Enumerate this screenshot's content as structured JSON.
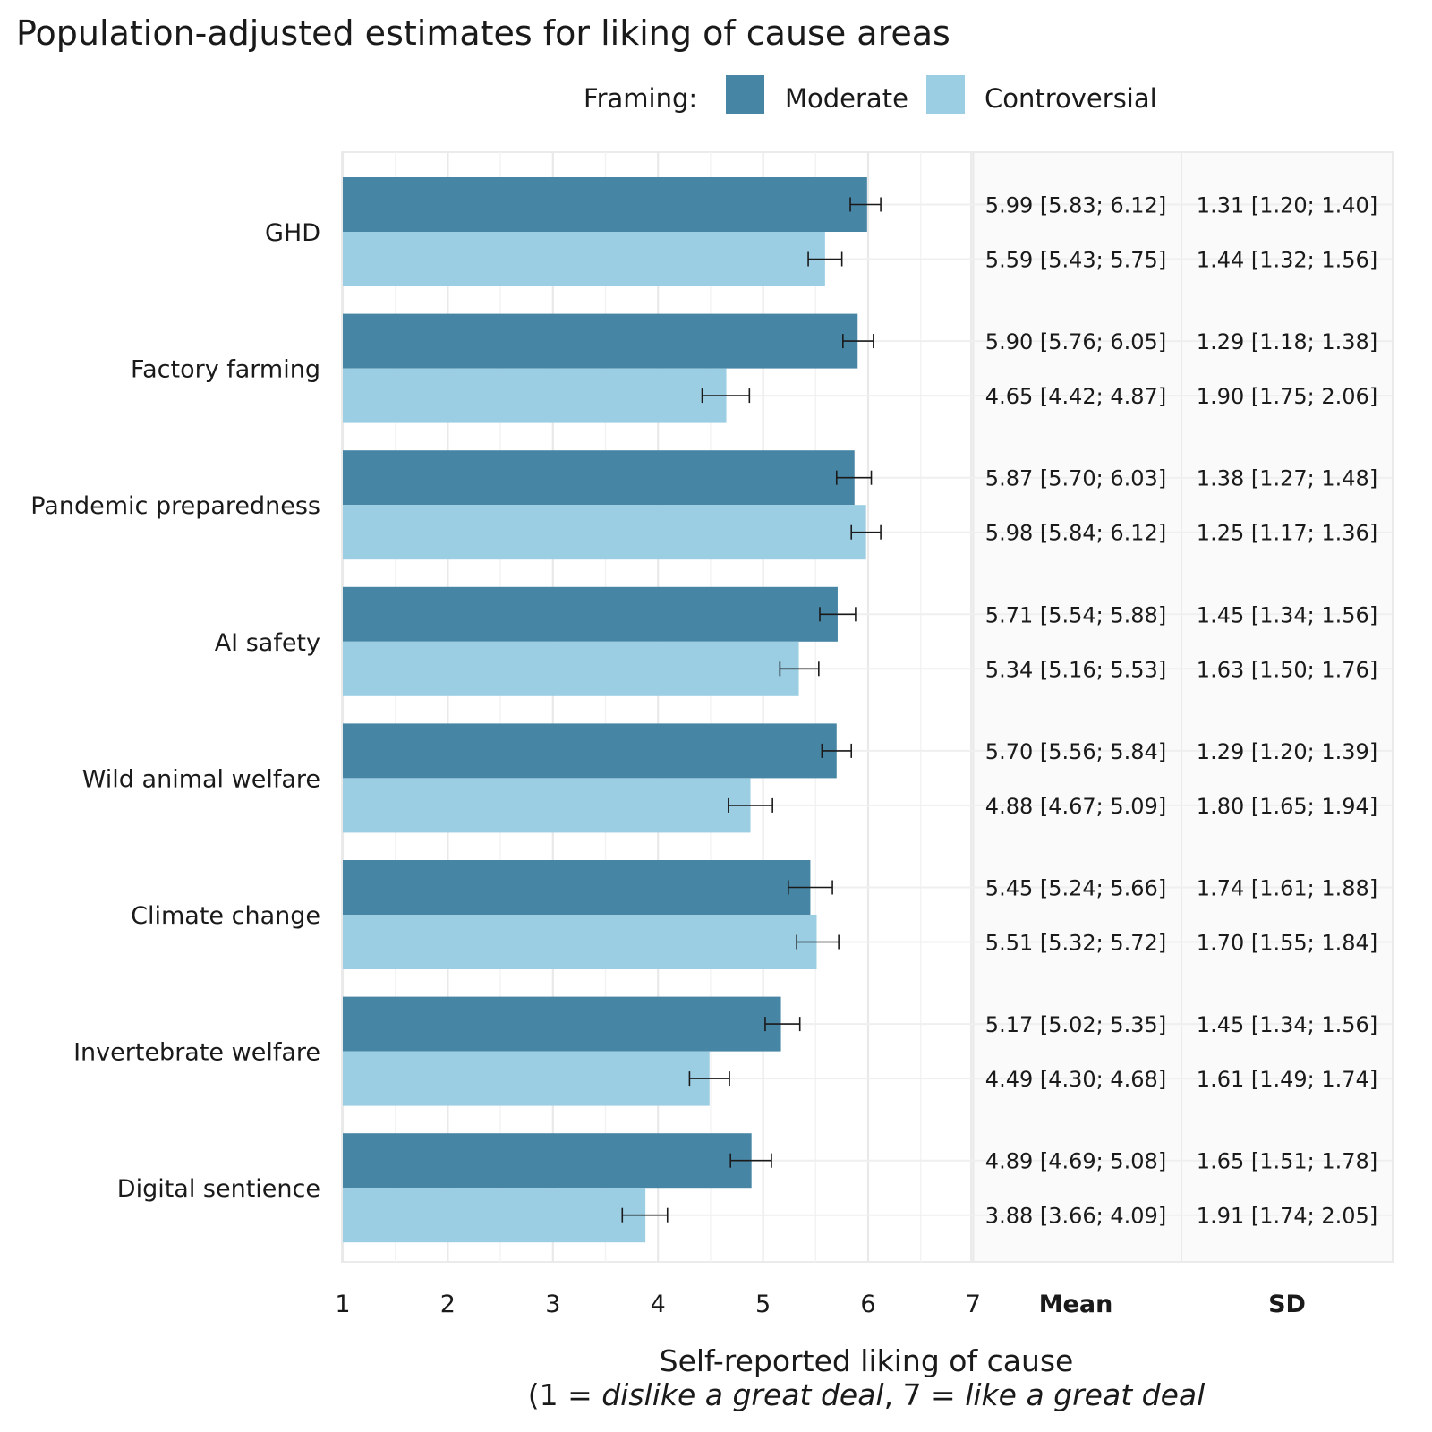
{
  "chart_data": {
    "type": "bar",
    "orientation": "horizontal",
    "title": "Population-adjusted estimates for liking of cause areas",
    "legend": {
      "title": "Framing:",
      "entries": [
        {
          "name": "Moderate",
          "color": "#4785a5"
        },
        {
          "name": "Controversial",
          "color": "#9bcde3"
        }
      ],
      "position": "top"
    },
    "categories": [
      "GHD",
      "Factory farming",
      "Pandemic preparedness",
      "AI safety",
      "Wild animal welfare",
      "Climate change",
      "Invertebrate welfare",
      "Digital sentience"
    ],
    "series": [
      {
        "name": "Moderate",
        "values": [
          5.99,
          5.9,
          5.87,
          5.71,
          5.7,
          5.45,
          5.17,
          4.89
        ],
        "ci_low": [
          5.83,
          5.76,
          5.7,
          5.54,
          5.56,
          5.24,
          5.02,
          4.69
        ],
        "ci_high": [
          6.12,
          6.05,
          6.03,
          5.88,
          5.84,
          5.66,
          5.35,
          5.08
        ],
        "mean_text": [
          "5.99 [5.83; 6.12]",
          "5.90 [5.76; 6.05]",
          "5.87 [5.70; 6.03]",
          "5.71 [5.54; 5.88]",
          "5.70 [5.56; 5.84]",
          "5.45 [5.24; 5.66]",
          "5.17 [5.02; 5.35]",
          "4.89 [4.69; 5.08]"
        ],
        "sd_text": [
          "1.31 [1.20; 1.40]",
          "1.29 [1.18; 1.38]",
          "1.38 [1.27; 1.48]",
          "1.45 [1.34; 1.56]",
          "1.29 [1.20; 1.39]",
          "1.74 [1.61; 1.88]",
          "1.45 [1.34; 1.56]",
          "1.65 [1.51; 1.78]"
        ]
      },
      {
        "name": "Controversial",
        "values": [
          5.59,
          4.65,
          5.98,
          5.34,
          4.88,
          5.51,
          4.49,
          3.88
        ],
        "ci_low": [
          5.43,
          4.42,
          5.84,
          5.16,
          4.67,
          5.32,
          4.3,
          3.66
        ],
        "ci_high": [
          5.75,
          4.87,
          6.12,
          5.53,
          5.09,
          5.72,
          4.68,
          4.09
        ],
        "mean_text": [
          "5.59 [5.43; 5.75]",
          "4.65 [4.42; 4.87]",
          "5.98 [5.84; 6.12]",
          "5.34 [5.16; 5.53]",
          "4.88 [4.67; 5.09]",
          "5.51 [5.32; 5.72]",
          "4.49 [4.30; 4.68]",
          "3.88 [3.66; 4.09]"
        ],
        "sd_text": [
          "1.44 [1.32; 1.56]",
          "1.90 [1.75; 2.06]",
          "1.25 [1.17; 1.36]",
          "1.63 [1.50; 1.76]",
          "1.80 [1.65; 1.94]",
          "1.70 [1.55; 1.84]",
          "1.61 [1.49; 1.74]",
          "1.91 [1.74; 2.05]"
        ]
      }
    ],
    "xlim": [
      1,
      7
    ],
    "xticks": [
      "1",
      "2",
      "3",
      "4",
      "5",
      "6",
      "7"
    ],
    "table_headers": {
      "mean": "Mean",
      "sd": "SD"
    },
    "xlabel": {
      "line1": "Self-reported liking of cause",
      "line2_prefix": "(1 = ",
      "line2_italic_1": "dislike a great deal",
      "line2_mid": ", 7 = ",
      "line2_italic_2": "like a great deal"
    }
  }
}
